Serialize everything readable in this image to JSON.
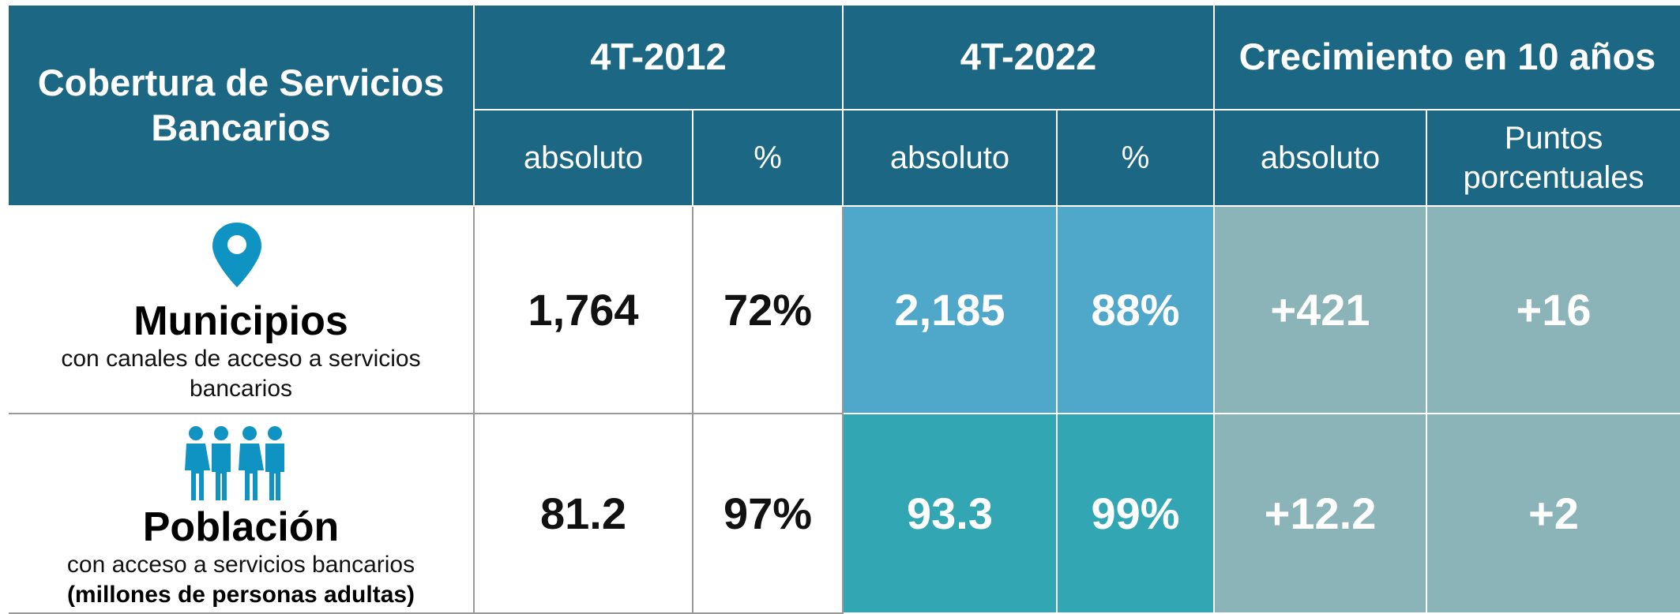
{
  "table": {
    "title": "Cobertura de Servicios Bancarios",
    "groups": [
      "4T-2012",
      "4T-2022",
      "Crecimiento en 10 años"
    ],
    "subheaders": [
      "absoluto",
      "%",
      "absoluto",
      "%",
      "absoluto",
      "Puntos porcentuales"
    ],
    "rows": [
      {
        "name": "Municipios",
        "description": "con canales de acceso a servicios bancarios",
        "cells": [
          "1,764",
          "72%",
          "2,185",
          "88%",
          "+421",
          "+16"
        ]
      },
      {
        "name": "Población",
        "description": "con acceso a servicios bancarios",
        "note": "(millones de personas adultas)",
        "cells": [
          "81.2",
          "97%",
          "93.3",
          "99%",
          "+12.2",
          "+2"
        ]
      }
    ]
  }
}
